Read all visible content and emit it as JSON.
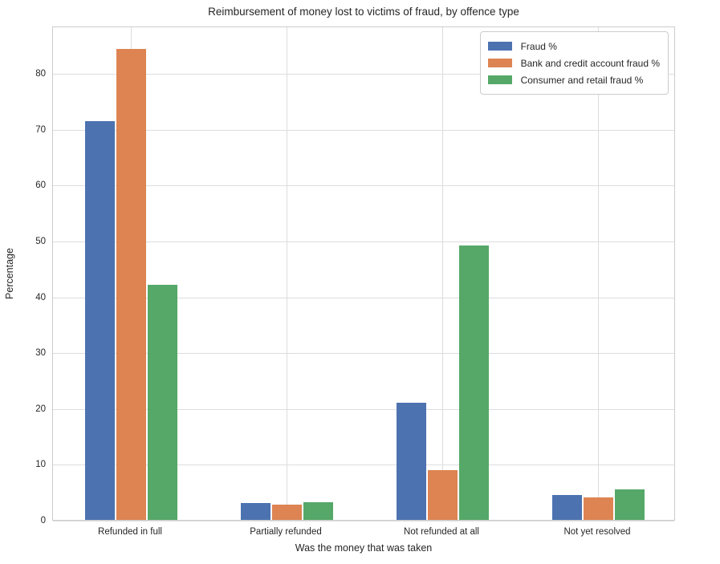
{
  "title": "Reimbursement of money lost to victims of fraud, by offence type",
  "chart_data": {
    "type": "bar",
    "title": "Reimbursement of money lost to victims of fraud, by offence type",
    "xlabel": "Was the money that was taken",
    "ylabel": "Percentage",
    "categories": [
      "Refunded in full",
      "Partially refunded",
      "Not refunded at all",
      "Not yet resolved"
    ],
    "series": [
      {
        "name": "Fraud %",
        "color": "#4C72B0",
        "values": [
          71.4,
          3.0,
          21.0,
          4.4
        ]
      },
      {
        "name": "Bank and credit account fraud %",
        "color": "#DD8452",
        "values": [
          84.3,
          2.7,
          8.9,
          4.0
        ]
      },
      {
        "name": "Consumer and retail fraud %",
        "color": "#55A868",
        "values": [
          42.1,
          3.1,
          49.2,
          5.5
        ]
      }
    ],
    "yticks": [
      0,
      10,
      20,
      30,
      40,
      50,
      60,
      70,
      80
    ],
    "ylim": [
      0,
      88.5
    ],
    "grid": true,
    "legend_position": "upper right"
  },
  "colors": {
    "grid": "#dddddd",
    "spine": "#cccccc",
    "text": "#262626",
    "background": "#ffffff"
  }
}
